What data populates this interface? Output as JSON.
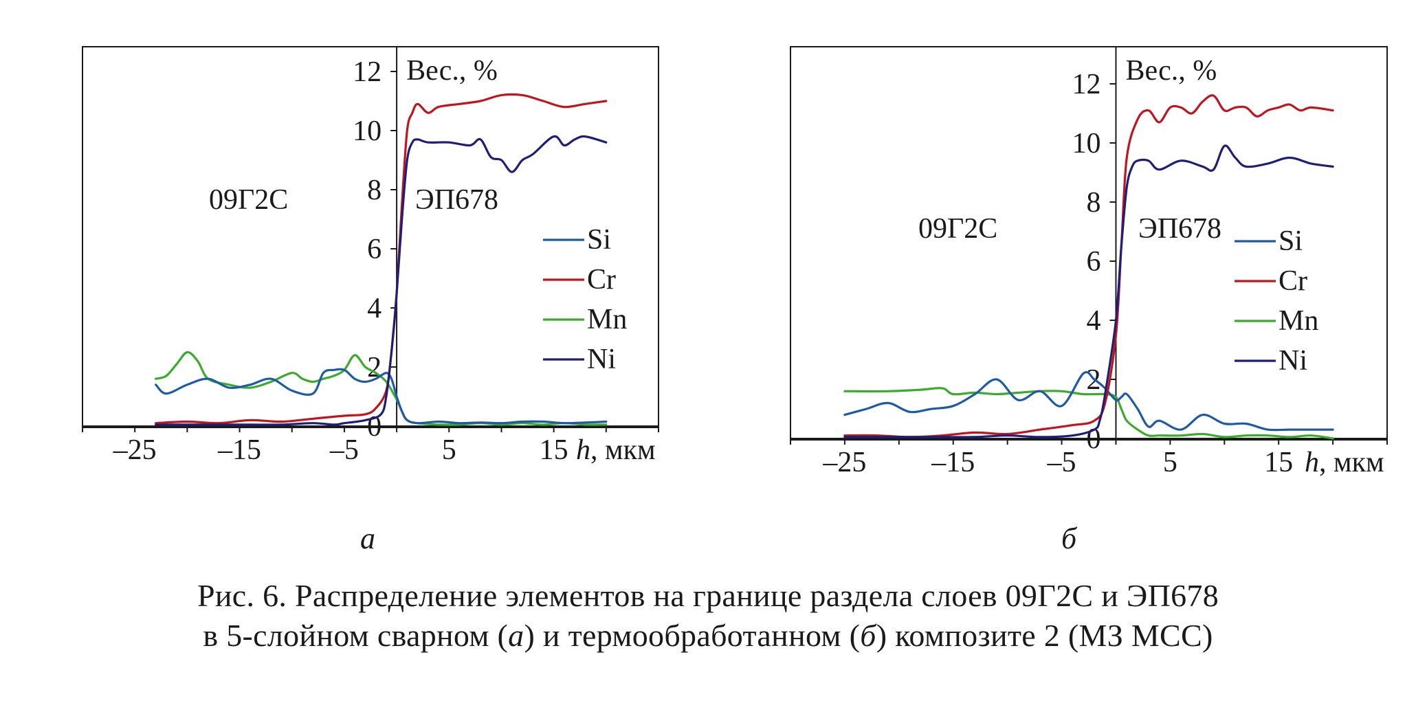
{
  "chart_data": [
    {
      "type": "line",
      "panel_label": "а",
      "x_unit_label": "h, мкм",
      "ylabel": "Вес., %",
      "xlim": [
        -30,
        25
      ],
      "ylim": [
        0,
        13
      ],
      "xticks": [
        "–25",
        "–15",
        "–5",
        "5",
        "15"
      ],
      "xtick_values": [
        -25,
        -15,
        -5,
        5,
        15
      ],
      "yticks": [
        "0",
        "2",
        "4",
        "6",
        "8",
        "10",
        "12"
      ],
      "ytick_values": [
        0,
        2,
        4,
        6,
        8,
        10,
        12
      ],
      "legend_position": "right",
      "annotations": {
        "left": "09Г2С",
        "right": "ЭП678"
      },
      "series": [
        {
          "name": "Si",
          "color": "#1f5aa6",
          "x": [
            -23,
            -22,
            -20,
            -18,
            -16,
            -14,
            -12,
            -10,
            -8,
            -7,
            -6,
            -5,
            -4,
            -3,
            -2,
            -1,
            -0.5,
            0,
            0.5,
            1,
            2,
            4,
            6,
            8,
            10,
            12,
            14,
            16,
            18,
            20
          ],
          "y": [
            1.4,
            1.1,
            1.4,
            1.6,
            1.3,
            1.4,
            1.6,
            1.2,
            1.1,
            1.8,
            1.9,
            1.9,
            1.6,
            1.5,
            1.6,
            1.8,
            1.6,
            1.0,
            0.5,
            0.2,
            0.1,
            0.15,
            0.1,
            0.12,
            0.1,
            0.15,
            0.15,
            0.1,
            0.12,
            0.15
          ]
        },
        {
          "name": "Cr",
          "color": "#c0141e",
          "x": [
            -23,
            -20,
            -17,
            -14,
            -11,
            -8,
            -5,
            -3,
            -2,
            -1,
            -0.5,
            0,
            0.5,
            1,
            1.5,
            2,
            3,
            4,
            6,
            8,
            10,
            12,
            14,
            16,
            18,
            20
          ],
          "y": [
            0.1,
            0.15,
            0.1,
            0.2,
            0.15,
            0.25,
            0.35,
            0.4,
            0.6,
            1.2,
            2.5,
            4.5,
            7.5,
            10.0,
            10.6,
            10.9,
            10.6,
            10.8,
            10.9,
            11.0,
            11.2,
            11.2,
            11.0,
            10.8,
            10.9,
            11.0
          ]
        },
        {
          "name": "Mn",
          "color": "#3aab2c",
          "x": [
            -23,
            -22,
            -21,
            -20,
            -19,
            -18,
            -16,
            -14,
            -12,
            -10,
            -9,
            -8,
            -7,
            -6,
            -5,
            -4,
            -3,
            -2,
            -1,
            0,
            0.5,
            1,
            2,
            4,
            6,
            8,
            10,
            12,
            14,
            16,
            18,
            20
          ],
          "y": [
            1.6,
            1.7,
            2.1,
            2.5,
            2.2,
            1.6,
            1.4,
            1.3,
            1.5,
            1.8,
            1.6,
            1.5,
            1.6,
            1.7,
            1.9,
            2.4,
            2.0,
            1.8,
            1.5,
            0.9,
            0.5,
            0.2,
            0.1,
            0.05,
            0.05,
            0.1,
            0.05,
            0.1,
            0.05,
            0.1,
            0.05,
            0.05
          ]
        },
        {
          "name": "Ni",
          "color": "#1e1e78",
          "x": [
            -23,
            -20,
            -17,
            -14,
            -11,
            -8,
            -6,
            -5,
            -3,
            -1.5,
            -1,
            -0.5,
            0,
            0.5,
            1,
            1.5,
            2,
            3,
            5,
            7,
            8,
            9,
            10,
            11,
            12,
            13,
            15,
            16,
            17,
            18,
            20
          ],
          "y": [
            0.05,
            0.05,
            0.05,
            0.05,
            0.05,
            0.1,
            0.05,
            0.1,
            0.2,
            0.4,
            1.0,
            2.5,
            4.5,
            7.0,
            9.0,
            9.6,
            9.7,
            9.6,
            9.6,
            9.5,
            9.7,
            9.1,
            9.0,
            8.6,
            9.0,
            9.2,
            9.8,
            9.5,
            9.7,
            9.8,
            9.6
          ]
        }
      ]
    },
    {
      "type": "line",
      "panel_label": "б",
      "x_unit_label": "h, мкм",
      "ylabel": "Вес., %",
      "xlim": [
        -30,
        25
      ],
      "ylim": [
        0,
        13
      ],
      "xticks": [
        "–25",
        "–15",
        "–5",
        "5",
        "15"
      ],
      "xtick_values": [
        -25,
        -15,
        -5,
        5,
        15
      ],
      "yticks": [
        "0",
        "2",
        "4",
        "6",
        "8",
        "10",
        "12"
      ],
      "ytick_values": [
        0,
        2,
        4,
        6,
        8,
        10,
        12
      ],
      "legend_position": "right",
      "annotations": {
        "left": "09Г2С",
        "right": "ЭП678"
      },
      "series": [
        {
          "name": "Si",
          "color": "#1f5aa6",
          "x": [
            -25,
            -23,
            -21,
            -19,
            -17,
            -15,
            -13,
            -11,
            -9,
            -7,
            -5,
            -3,
            -2,
            -1,
            0,
            0.5,
            1,
            2,
            3,
            4,
            6,
            8,
            10,
            12,
            14,
            16,
            18,
            20
          ],
          "y": [
            0.8,
            1.0,
            1.2,
            0.9,
            1.0,
            1.1,
            1.5,
            2.0,
            1.3,
            1.6,
            1.1,
            2.2,
            2.0,
            1.7,
            1.3,
            1.4,
            1.5,
            1.0,
            0.4,
            0.6,
            0.3,
            0.8,
            0.5,
            0.5,
            0.3,
            0.3,
            0.3,
            0.3
          ]
        },
        {
          "name": "Cr",
          "color": "#c0141e",
          "x": [
            -25,
            -22,
            -19,
            -16,
            -13,
            -10,
            -7,
            -4,
            -2,
            -1,
            0,
            0.5,
            1,
            2,
            3,
            4,
            5,
            6,
            7,
            8,
            9,
            10,
            11,
            12,
            13,
            14,
            15,
            16,
            17,
            18,
            20
          ],
          "y": [
            0.1,
            0.1,
            0.05,
            0.1,
            0.2,
            0.15,
            0.3,
            0.45,
            0.6,
            1.2,
            3.5,
            6.5,
            9.5,
            10.8,
            11.1,
            10.7,
            11.2,
            11.2,
            11.0,
            11.4,
            11.6,
            11.1,
            11.2,
            11.2,
            10.9,
            11.1,
            11.2,
            11.3,
            11.1,
            11.2,
            11.1
          ]
        },
        {
          "name": "Mn",
          "color": "#3aab2c",
          "x": [
            -25,
            -21,
            -18,
            -16,
            -15,
            -13,
            -11,
            -9,
            -7,
            -5,
            -3,
            -1,
            0,
            0.5,
            1,
            2,
            3,
            4,
            6,
            8,
            10,
            12,
            14,
            16,
            18,
            20
          ],
          "y": [
            1.6,
            1.6,
            1.65,
            1.7,
            1.5,
            1.55,
            1.5,
            1.55,
            1.6,
            1.6,
            1.5,
            1.5,
            1.4,
            1.0,
            0.6,
            0.3,
            0.1,
            0.1,
            0.1,
            0.15,
            0.05,
            0.1,
            0.1,
            0.05,
            0.1,
            0.0
          ]
        },
        {
          "name": "Ni",
          "color": "#1e1e78",
          "x": [
            -25,
            -22,
            -19,
            -16,
            -13,
            -10,
            -7,
            -4,
            -2,
            -1.5,
            -1,
            0,
            0.5,
            1,
            1.5,
            2,
            3,
            4,
            6,
            8,
            9,
            10,
            11,
            12,
            14,
            16,
            18,
            20
          ],
          "y": [
            0.05,
            0.05,
            0.05,
            0.05,
            0.05,
            0.1,
            0.05,
            0.1,
            0.3,
            0.6,
            1.5,
            4.0,
            6.5,
            8.5,
            9.2,
            9.4,
            9.4,
            9.1,
            9.4,
            9.2,
            9.1,
            9.9,
            9.5,
            9.2,
            9.3,
            9.5,
            9.3,
            9.2
          ]
        }
      ]
    }
  ],
  "caption": {
    "line1": "Рис. 6. Распределение элементов на границе раздела слоев 09Г2С и ЭП678",
    "line2_prefix": "в 5-слойном сварном (",
    "line2_a": "а",
    "line2_mid": ") и термообработанном (",
    "line2_b": "б",
    "line2_suffix": ") композите 2 (МЗ МСС)"
  }
}
